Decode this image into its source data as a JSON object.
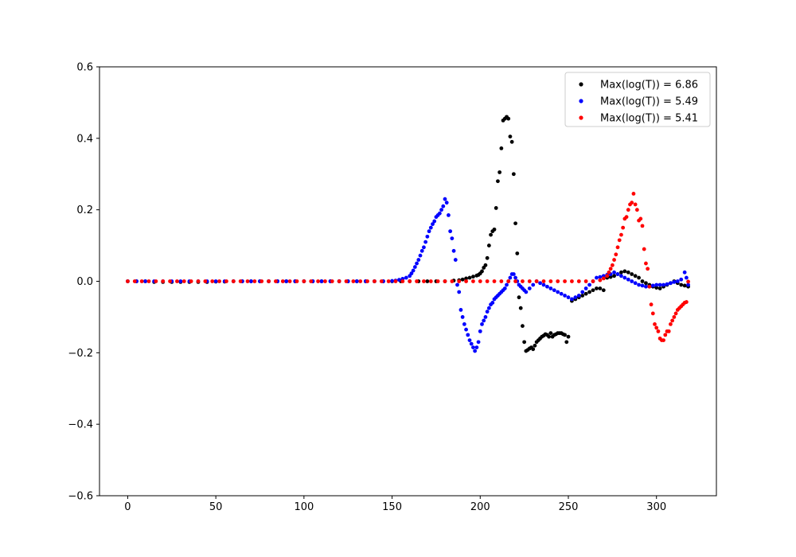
{
  "chart_data": {
    "type": "scatter",
    "title": "",
    "xlabel": "",
    "ylabel": "",
    "xlim": [
      -16,
      334
    ],
    "ylim": [
      -0.6,
      0.6
    ],
    "x_ticks": [
      0,
      50,
      100,
      150,
      200,
      250,
      300
    ],
    "x_tick_labels": [
      "0",
      "50",
      "100",
      "150",
      "200",
      "250",
      "300"
    ],
    "y_ticks": [
      -0.6,
      -0.4,
      -0.2,
      0.0,
      0.2,
      0.4,
      0.6
    ],
    "y_tick_labels": [
      "−0.6",
      "−0.4",
      "−0.2",
      "0.0",
      "0.2",
      "0.4",
      "0.6"
    ],
    "grid": false,
    "legend_position": "top-right",
    "series": [
      {
        "name": "Max(log(T)) = 6.86",
        "color": "#000000",
        "x": [
          0,
          5,
          10,
          15,
          20,
          25,
          30,
          35,
          40,
          45,
          50,
          55,
          60,
          65,
          70,
          75,
          80,
          85,
          90,
          95,
          100,
          105,
          110,
          115,
          120,
          125,
          130,
          135,
          140,
          145,
          150,
          155,
          160,
          165,
          170,
          175,
          180,
          185,
          188,
          190,
          192,
          194,
          196,
          198,
          199,
          200,
          201,
          202,
          203,
          204,
          205,
          206,
          207,
          208,
          209,
          210,
          211,
          212,
          213,
          214,
          215,
          216,
          217,
          218,
          219,
          220,
          221,
          222,
          223,
          224,
          225,
          226,
          227,
          228,
          229,
          230,
          231,
          232,
          233,
          234,
          235,
          236,
          237,
          238,
          239,
          240,
          241,
          242,
          243,
          244,
          245,
          246,
          247,
          248,
          249,
          250,
          252,
          254,
          256,
          258,
          260,
          262,
          264,
          266,
          268,
          270,
          272,
          274,
          276,
          278,
          280,
          282,
          284,
          286,
          288,
          290,
          292,
          294,
          296,
          298,
          300,
          302,
          304,
          306,
          308,
          310,
          312,
          314,
          316,
          318
        ],
        "y": [
          0,
          0,
          0,
          -0.002,
          -0.002,
          -0.002,
          -0.002,
          -0.002,
          -0.002,
          -0.002,
          -0.001,
          -0.001,
          0,
          0,
          0,
          0,
          0,
          0,
          0,
          0,
          0,
          0,
          0,
          0,
          0,
          0,
          0,
          0,
          0,
          0,
          0,
          0,
          0,
          0,
          0,
          0,
          0,
          0.002,
          0.003,
          0.005,
          0.008,
          0.01,
          0.013,
          0.016,
          0.018,
          0.022,
          0.028,
          0.038,
          0.045,
          0.065,
          0.1,
          0.13,
          0.14,
          0.145,
          0.205,
          0.28,
          0.305,
          0.372,
          0.45,
          0.455,
          0.46,
          0.455,
          0.405,
          0.39,
          0.3,
          0.162,
          0.078,
          -0.045,
          -0.075,
          -0.125,
          -0.17,
          -0.195,
          -0.192,
          -0.188,
          -0.185,
          -0.19,
          -0.18,
          -0.17,
          -0.165,
          -0.16,
          -0.155,
          -0.152,
          -0.148,
          -0.15,
          -0.155,
          -0.145,
          -0.155,
          -0.15,
          -0.148,
          -0.145,
          -0.145,
          -0.145,
          -0.148,
          -0.15,
          -0.17,
          -0.155,
          -0.055,
          -0.05,
          -0.045,
          -0.04,
          -0.035,
          -0.03,
          -0.025,
          -0.02,
          -0.02,
          -0.025,
          0.01,
          0.012,
          0.015,
          0.02,
          0.025,
          0.028,
          0.025,
          0.02,
          0.015,
          0.01,
          0.0,
          -0.005,
          -0.01,
          -0.015,
          -0.018,
          -0.02,
          -0.015,
          -0.01,
          -0.005,
          0.0,
          -0.005,
          -0.01,
          -0.012,
          -0.015
        ]
      },
      {
        "name": "Max(log(T)) = 5.49",
        "color": "#0000ff",
        "x": [
          0,
          5,
          10,
          15,
          20,
          25,
          30,
          35,
          40,
          45,
          50,
          55,
          60,
          65,
          70,
          75,
          80,
          85,
          90,
          95,
          100,
          105,
          110,
          115,
          120,
          125,
          130,
          135,
          140,
          145,
          150,
          152,
          154,
          156,
          158,
          160,
          161,
          162,
          163,
          164,
          165,
          166,
          167,
          168,
          169,
          170,
          171,
          172,
          173,
          174,
          175,
          176,
          177,
          178,
          179,
          180,
          181,
          182,
          183,
          184,
          185,
          186,
          187,
          188,
          189,
          190,
          191,
          192,
          193,
          194,
          195,
          196,
          197,
          198,
          199,
          200,
          201,
          202,
          203,
          204,
          205,
          206,
          207,
          208,
          209,
          210,
          211,
          212,
          213,
          214,
          215,
          216,
          217,
          218,
          219,
          220,
          221,
          222,
          223,
          224,
          225,
          226,
          228,
          230,
          232,
          234,
          236,
          238,
          240,
          242,
          244,
          246,
          248,
          250,
          252,
          254,
          256,
          258,
          260,
          262,
          264,
          266,
          268,
          270,
          272,
          274,
          276,
          278,
          280,
          282,
          284,
          286,
          288,
          290,
          292,
          294,
          296,
          298,
          300,
          302,
          304,
          306,
          308,
          310,
          312,
          314,
          316,
          317,
          318
        ],
        "y": [
          0,
          0,
          0,
          0,
          0,
          0,
          0,
          0,
          0,
          0,
          0,
          0,
          0,
          0,
          0,
          0,
          0,
          0,
          0,
          0,
          0,
          0,
          0,
          0,
          0,
          0,
          0,
          0,
          0,
          0,
          0.001,
          0.002,
          0.004,
          0.007,
          0.01,
          0.015,
          0.022,
          0.03,
          0.04,
          0.05,
          0.06,
          0.072,
          0.085,
          0.095,
          0.11,
          0.125,
          0.14,
          0.15,
          0.16,
          0.168,
          0.18,
          0.185,
          0.19,
          0.2,
          0.21,
          0.23,
          0.22,
          0.185,
          0.14,
          0.12,
          0.085,
          0.06,
          -0.01,
          -0.03,
          -0.08,
          -0.1,
          -0.12,
          -0.135,
          -0.15,
          -0.165,
          -0.175,
          -0.185,
          -0.195,
          -0.185,
          -0.17,
          -0.14,
          -0.12,
          -0.11,
          -0.1,
          -0.085,
          -0.075,
          -0.065,
          -0.06,
          -0.05,
          -0.045,
          -0.04,
          -0.035,
          -0.03,
          -0.025,
          -0.02,
          -0.01,
          0.0,
          0.01,
          0.02,
          0.02,
          0.01,
          0.0,
          -0.01,
          -0.015,
          -0.02,
          -0.025,
          -0.03,
          -0.02,
          -0.01,
          0.0,
          -0.005,
          -0.01,
          -0.015,
          -0.02,
          -0.025,
          -0.03,
          -0.035,
          -0.04,
          -0.045,
          -0.05,
          -0.045,
          -0.04,
          -0.03,
          -0.02,
          -0.01,
          0.0,
          0.01,
          0.012,
          0.015,
          0.018,
          0.02,
          0.025,
          0.02,
          0.015,
          0.01,
          0.005,
          0.0,
          -0.005,
          -0.01,
          -0.012,
          -0.015,
          -0.015,
          -0.012,
          -0.01,
          -0.01,
          -0.01,
          -0.008,
          -0.005,
          -0.002,
          0.0,
          0.005,
          0.025,
          0.01,
          -0.01
        ]
      },
      {
        "name": "Max(log(T)) = 5.41",
        "color": "#ff0000",
        "x": [
          0,
          4,
          8,
          12,
          16,
          20,
          24,
          28,
          32,
          36,
          40,
          44,
          48,
          52,
          56,
          60,
          64,
          68,
          72,
          76,
          80,
          84,
          88,
          92,
          96,
          100,
          104,
          108,
          112,
          116,
          120,
          124,
          128,
          132,
          136,
          140,
          144,
          148,
          152,
          156,
          160,
          164,
          168,
          172,
          176,
          180,
          184,
          188,
          192,
          196,
          200,
          204,
          208,
          212,
          216,
          220,
          224,
          228,
          232,
          236,
          240,
          244,
          248,
          252,
          256,
          260,
          264,
          268,
          270,
          272,
          273,
          274,
          275,
          276,
          277,
          278,
          279,
          280,
          281,
          282,
          283,
          284,
          285,
          286,
          287,
          288,
          289,
          290,
          291,
          292,
          293,
          294,
          295,
          296,
          297,
          298,
          299,
          300,
          301,
          302,
          303,
          304,
          305,
          306,
          307,
          308,
          309,
          310,
          311,
          312,
          313,
          314,
          315,
          316,
          317,
          318
        ],
        "y": [
          0,
          0,
          0,
          0,
          0,
          0,
          0,
          0,
          0,
          0,
          0,
          0,
          0,
          0,
          0,
          0,
          0,
          0,
          0,
          0,
          0,
          0,
          0,
          0,
          0,
          0,
          0,
          0,
          0,
          0,
          0,
          0,
          0,
          0,
          0,
          0,
          0,
          0,
          0,
          0,
          0,
          0,
          0,
          0,
          0,
          0,
          0,
          0,
          0,
          0,
          0,
          0,
          0,
          0,
          0,
          0,
          0,
          0,
          0,
          0,
          0,
          0,
          0,
          0,
          0,
          0,
          0,
          0.003,
          0.008,
          0.015,
          0.025,
          0.035,
          0.045,
          0.06,
          0.075,
          0.095,
          0.115,
          0.13,
          0.15,
          0.175,
          0.18,
          0.2,
          0.215,
          0.22,
          0.245,
          0.215,
          0.2,
          0.17,
          0.175,
          0.155,
          0.09,
          0.05,
          0.035,
          -0.015,
          -0.065,
          -0.09,
          -0.12,
          -0.13,
          -0.14,
          -0.16,
          -0.165,
          -0.165,
          -0.15,
          -0.14,
          -0.14,
          -0.12,
          -0.11,
          -0.1,
          -0.09,
          -0.08,
          -0.075,
          -0.07,
          -0.065,
          -0.06,
          -0.058,
          -0.001
        ]
      }
    ]
  }
}
